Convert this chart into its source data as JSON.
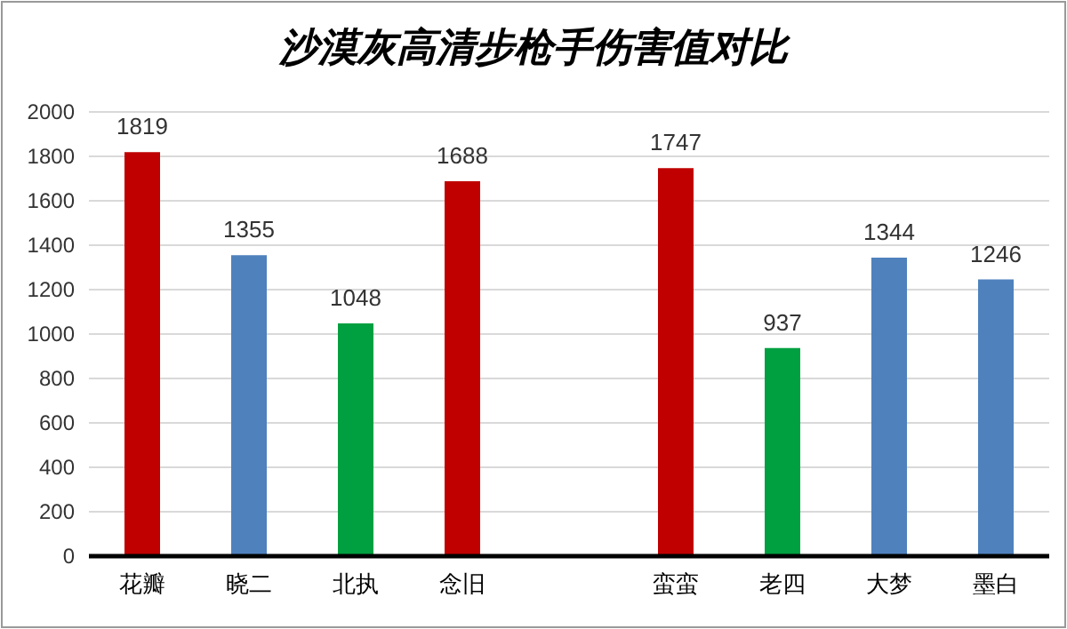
{
  "chart_data": {
    "type": "bar",
    "title": "沙漠灰高清步枪手伤害值对比",
    "categories": [
      "花瓣",
      "晓二",
      "北执",
      "念旧",
      null,
      "蛮蛮",
      "老四",
      "大梦",
      "墨白"
    ],
    "values": [
      1819,
      1355,
      1048,
      1688,
      null,
      1747,
      937,
      1344,
      1246
    ],
    "colors": [
      "#c00000",
      "#4f81bd",
      "#00a040",
      "#c00000",
      null,
      "#c00000",
      "#00a040",
      "#4f81bd",
      "#4f81bd"
    ],
    "ylim": [
      0,
      2000
    ],
    "yticks": [
      0,
      200,
      400,
      600,
      800,
      1000,
      1200,
      1400,
      1600,
      1800,
      2000
    ],
    "grid": "y",
    "data_labels": true
  }
}
